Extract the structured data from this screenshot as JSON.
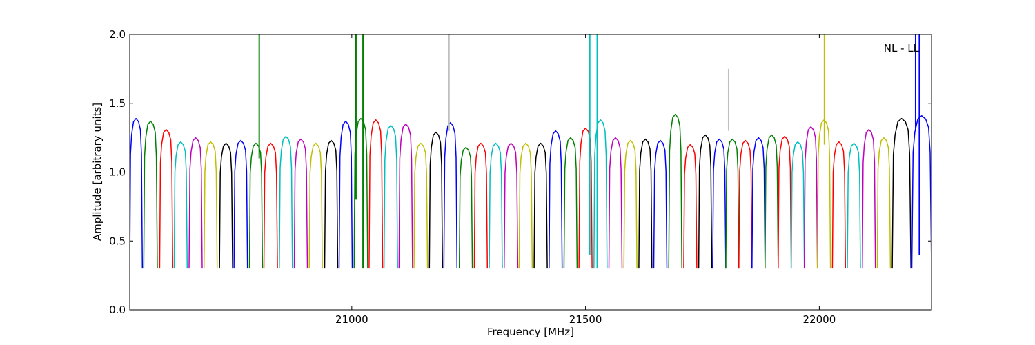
{
  "chart_data": {
    "type": "line",
    "xlabel": "Frequency [MHz]",
    "ylabel": "Amplitude [arbitrary units]",
    "annotation": "NL - LL",
    "xlim": [
      20525,
      22240
    ],
    "ylim": [
      0.0,
      2.0
    ],
    "x_ticks": [
      21000,
      21500,
      22000
    ],
    "y_ticks": [
      0.0,
      0.5,
      1.0,
      1.5,
      2.0
    ],
    "x_tick_labels": [
      "21000",
      "21500",
      "22000"
    ],
    "y_tick_labels": [
      "0.0",
      "0.5",
      "1.0",
      "1.5",
      "2.0"
    ],
    "grid": false,
    "legend": "none",
    "band_color_cycle": [
      "#0000ff",
      "#008000",
      "#ff0000",
      "#00bfbf",
      "#bf00bf",
      "#bfbf00",
      "#000000"
    ],
    "band_shape": {
      "x_offset_frac": [
        0.0,
        0.06,
        0.15,
        0.3,
        0.5,
        0.7,
        0.85,
        0.93,
        1.0
      ],
      "y_profile": [
        0.3,
        1.0,
        1.12,
        1.2,
        1.22,
        1.2,
        1.15,
        1.0,
        0.3
      ]
    },
    "bands": [
      {
        "x0": 20525,
        "x1": 20552,
        "peak": 1.39,
        "color": "#0000ff"
      },
      {
        "x0": 20555,
        "x1": 20584,
        "peak": 1.37,
        "color": "#008000"
      },
      {
        "x0": 20589,
        "x1": 20617,
        "peak": 1.31,
        "color": "#ff0000"
      },
      {
        "x0": 20620,
        "x1": 20648,
        "peak": 1.22,
        "color": "#00bfbf"
      },
      {
        "x0": 20652,
        "x1": 20680,
        "peak": 1.25,
        "color": "#bf00bf"
      },
      {
        "x0": 20684,
        "x1": 20712,
        "peak": 1.22,
        "color": "#bfbf00"
      },
      {
        "x0": 20717,
        "x1": 20745,
        "peak": 1.21,
        "color": "#000000"
      },
      {
        "x0": 20748,
        "x1": 20777,
        "peak": 1.23,
        "color": "#0000ff"
      },
      {
        "x0": 20781,
        "x1": 20809,
        "peak": 1.21,
        "color": "#008000"
      },
      {
        "x0": 20812,
        "x1": 20841,
        "peak": 1.21,
        "color": "#ff0000"
      },
      {
        "x0": 20845,
        "x1": 20873,
        "peak": 1.26,
        "color": "#00bfbf"
      },
      {
        "x0": 20877,
        "x1": 20905,
        "peak": 1.24,
        "color": "#bf00bf"
      },
      {
        "x0": 20909,
        "x1": 20937,
        "peak": 1.21,
        "color": "#bfbf00"
      },
      {
        "x0": 20942,
        "x1": 20970,
        "peak": 1.23,
        "color": "#000000"
      },
      {
        "x0": 20973,
        "x1": 21001,
        "peak": 1.37,
        "color": "#0000ff"
      },
      {
        "x0": 21005,
        "x1": 21034,
        "peak": 1.39,
        "color": "#008000"
      },
      {
        "x0": 21037,
        "x1": 21066,
        "peak": 1.38,
        "color": "#ff0000"
      },
      {
        "x0": 21069,
        "x1": 21098,
        "peak": 1.34,
        "color": "#00bfbf"
      },
      {
        "x0": 21101,
        "x1": 21130,
        "peak": 1.35,
        "color": "#bf00bf"
      },
      {
        "x0": 21133,
        "x1": 21162,
        "peak": 1.21,
        "color": "#bfbf00"
      },
      {
        "x0": 21166,
        "x1": 21194,
        "peak": 1.29,
        "color": "#000000"
      },
      {
        "x0": 21197,
        "x1": 21225,
        "peak": 1.36,
        "color": "#0000ff"
      },
      {
        "x0": 21230,
        "x1": 21258,
        "peak": 1.18,
        "color": "#008000"
      },
      {
        "x0": 21262,
        "x1": 21290,
        "peak": 1.21,
        "color": "#ff0000"
      },
      {
        "x0": 21294,
        "x1": 21322,
        "peak": 1.21,
        "color": "#00bfbf"
      },
      {
        "x0": 21326,
        "x1": 21355,
        "peak": 1.21,
        "color": "#bf00bf"
      },
      {
        "x0": 21358,
        "x1": 21386,
        "peak": 1.21,
        "color": "#bfbf00"
      },
      {
        "x0": 21390,
        "x1": 21418,
        "peak": 1.21,
        "color": "#000000"
      },
      {
        "x0": 21422,
        "x1": 21450,
        "peak": 1.3,
        "color": "#0000ff"
      },
      {
        "x0": 21454,
        "x1": 21482,
        "peak": 1.25,
        "color": "#008000"
      },
      {
        "x0": 21486,
        "x1": 21514,
        "peak": 1.32,
        "color": "#ff0000"
      },
      {
        "x0": 21518,
        "x1": 21546,
        "peak": 1.38,
        "color": "#00bfbf"
      },
      {
        "x0": 21550,
        "x1": 21578,
        "peak": 1.25,
        "color": "#bf00bf"
      },
      {
        "x0": 21582,
        "x1": 21610,
        "peak": 1.23,
        "color": "#bfbf00"
      },
      {
        "x0": 21614,
        "x1": 21642,
        "peak": 1.24,
        "color": "#000000"
      },
      {
        "x0": 21646,
        "x1": 21674,
        "peak": 1.23,
        "color": "#0000ff"
      },
      {
        "x0": 21678,
        "x1": 21706,
        "peak": 1.42,
        "color": "#008000"
      },
      {
        "x0": 21710,
        "x1": 21738,
        "peak": 1.2,
        "color": "#ff0000"
      },
      {
        "x0": 21742,
        "x1": 21770,
        "peak": 1.27,
        "color": "#000000"
      },
      {
        "x0": 21772,
        "x1": 21800,
        "peak": 1.24,
        "color": "#0000ff"
      },
      {
        "x0": 21800,
        "x1": 21828,
        "peak": 1.24,
        "color": "#008000"
      },
      {
        "x0": 21828,
        "x1": 21856,
        "peak": 1.23,
        "color": "#ff0000"
      },
      {
        "x0": 21856,
        "x1": 21884,
        "peak": 1.25,
        "color": "#0000ff"
      },
      {
        "x0": 21884,
        "x1": 21912,
        "peak": 1.27,
        "color": "#008000"
      },
      {
        "x0": 21912,
        "x1": 21940,
        "peak": 1.26,
        "color": "#ff0000"
      },
      {
        "x0": 21940,
        "x1": 21968,
        "peak": 1.22,
        "color": "#00bfbf"
      },
      {
        "x0": 21968,
        "x1": 21996,
        "peak": 1.33,
        "color": "#bf00bf"
      },
      {
        "x0": 21996,
        "x1": 22024,
        "peak": 1.38,
        "color": "#bfbf00"
      },
      {
        "x0": 22028,
        "x1": 22056,
        "peak": 1.22,
        "color": "#ff0000"
      },
      {
        "x0": 22060,
        "x1": 22088,
        "peak": 1.21,
        "color": "#00bfbf"
      },
      {
        "x0": 22092,
        "x1": 22120,
        "peak": 1.31,
        "color": "#bf00bf"
      },
      {
        "x0": 22124,
        "x1": 22152,
        "peak": 1.25,
        "color": "#bfbf00"
      },
      {
        "x0": 22156,
        "x1": 22196,
        "peak": 1.39,
        "color": "#000000"
      },
      {
        "x0": 22198,
        "x1": 22240,
        "peak": 1.41,
        "color": "#0000ff"
      }
    ],
    "spikes": [
      {
        "x": 20802,
        "y0": 1.1,
        "y1": 2.0,
        "color": "#008000"
      },
      {
        "x": 21009,
        "y0": 0.8,
        "y1": 2.0,
        "color": "#008000"
      },
      {
        "x": 21024,
        "y0": 0.3,
        "y1": 2.0,
        "color": "#008000"
      },
      {
        "x": 21208,
        "y0": 1.3,
        "y1": 2.0,
        "color": "#bfbfbf"
      },
      {
        "x": 21509,
        "y0": 0.4,
        "y1": 2.0,
        "color": "#00bfbf"
      },
      {
        "x": 21525,
        "y0": 0.3,
        "y1": 2.0,
        "color": "#00bfbf"
      },
      {
        "x": 21806,
        "y0": 1.3,
        "y1": 1.75,
        "color": "#bfbfbf"
      },
      {
        "x": 22011,
        "y0": 1.2,
        "y1": 2.0,
        "color": "#bfbf00"
      },
      {
        "x": 22206,
        "y0": 1.3,
        "y1": 2.0,
        "color": "#0000ff"
      },
      {
        "x": 22214,
        "y0": 0.4,
        "y1": 2.0,
        "color": "#0000ff"
      }
    ]
  }
}
